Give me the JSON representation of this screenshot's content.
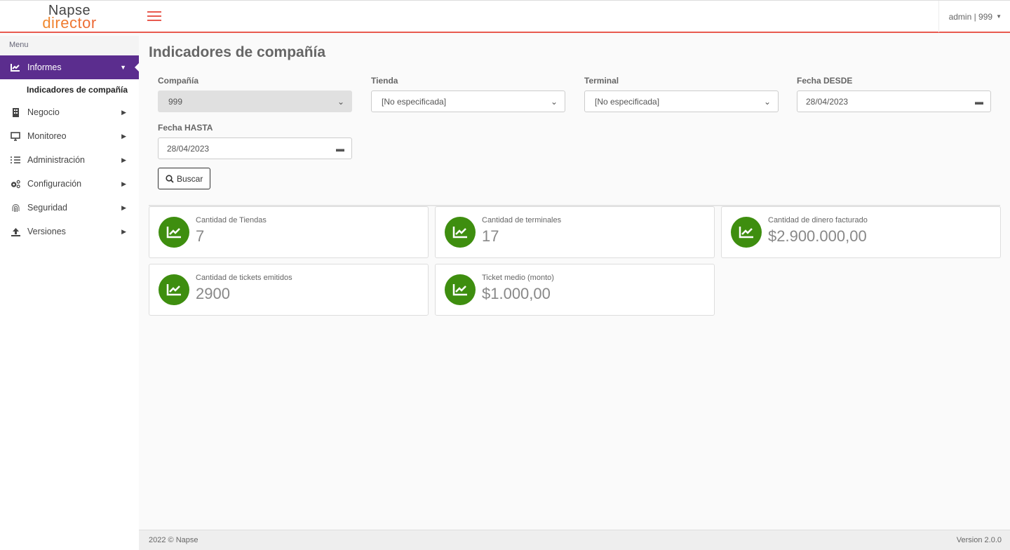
{
  "header": {
    "logo_top": "Napse",
    "logo_bottom": "director",
    "user": "admin | 999"
  },
  "sidebar": {
    "menu_label": "Menu",
    "items": [
      {
        "label": "Informes",
        "icon": "chart-line-icon"
      },
      {
        "label": "Negocio",
        "icon": "building-icon"
      },
      {
        "label": "Monitoreo",
        "icon": "monitor-icon"
      },
      {
        "label": "Administración",
        "icon": "list-check-icon"
      },
      {
        "label": "Configuración",
        "icon": "gears-icon"
      },
      {
        "label": "Seguridad",
        "icon": "fingerprint-icon"
      },
      {
        "label": "Versiones",
        "icon": "upload-icon"
      }
    ],
    "subitem": "Indicadores de compañía"
  },
  "page": {
    "title": "Indicadores de compañía"
  },
  "filters": {
    "company": {
      "label": "Compañía",
      "value": "999"
    },
    "store": {
      "label": "Tienda",
      "value": "[No especificada]"
    },
    "terminal": {
      "label": "Terminal",
      "value": "[No especificada]"
    },
    "date_from": {
      "label": "Fecha DESDE",
      "value": "28/04/2023"
    },
    "date_to": {
      "label": "Fecha HASTA",
      "value": "28/04/2023"
    },
    "search_label": "Buscar"
  },
  "cards": [
    {
      "title": "Cantidad de Tiendas",
      "value": "7"
    },
    {
      "title": "Cantidad de terminales",
      "value": "17"
    },
    {
      "title": "Cantidad de dinero facturado",
      "value": "$2.900.000,00"
    },
    {
      "title": "Cantidad de tickets emitidos",
      "value": "2900"
    },
    {
      "title": "Ticket medio (monto)",
      "value": "$1.000,00"
    }
  ],
  "colors": {
    "accent": "#5b2d8e",
    "card_icon": "#3e8e0f",
    "topbar_line": "#e85a4f"
  },
  "footer": {
    "copyright": "2022 © Napse",
    "version": "Version 2.0.0"
  }
}
